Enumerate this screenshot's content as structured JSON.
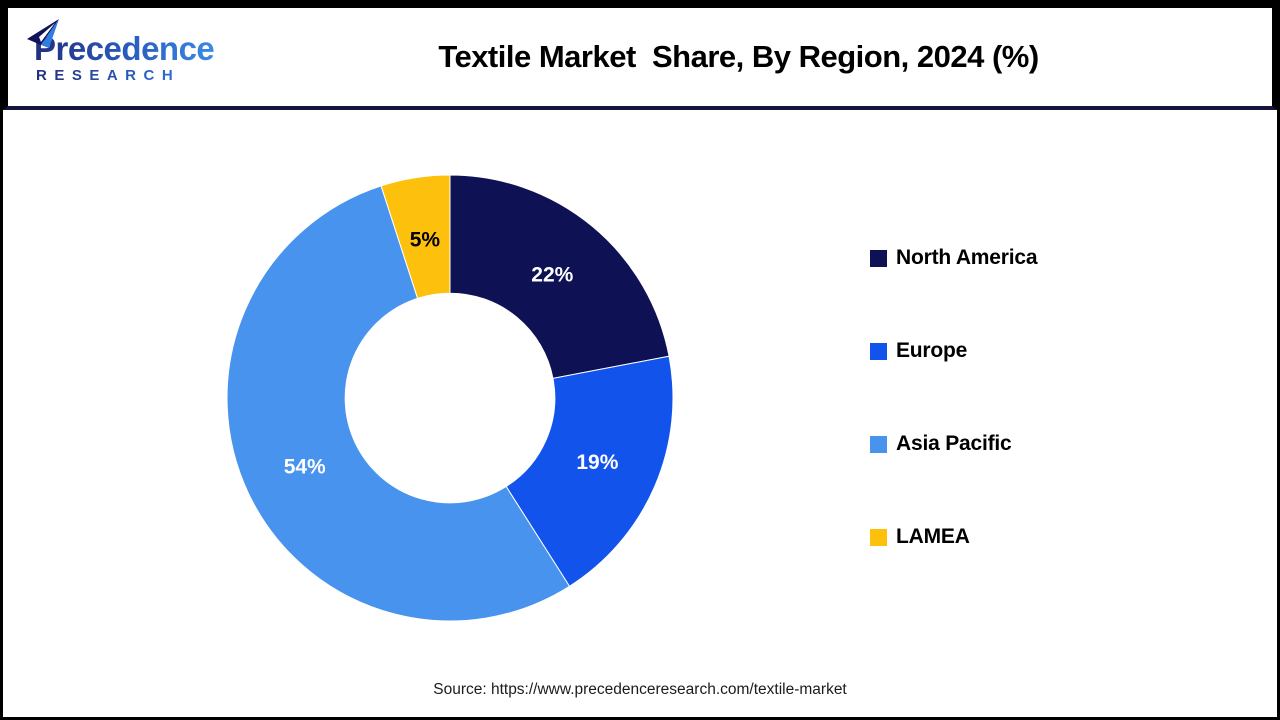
{
  "header": {
    "logo": {
      "name": "Precedence",
      "subtitle": "RESEARCH",
      "colors": {
        "navy": "#232E7D",
        "blue": "#3A8AE4"
      }
    },
    "title": "Textile Market  Share, By Region, 2024 (%)"
  },
  "chart_data": {
    "type": "pie",
    "subtype": "donut",
    "title": "Textile Market Share, By Region, 2024 (%)",
    "units": "%",
    "start_angle_deg": 0,
    "direction": "clockwise",
    "inner_radius_ratio": 0.47,
    "outer_radius_px": 223,
    "legend_position": "right",
    "grid": false,
    "series": [
      {
        "label": "North America",
        "value": 22,
        "data_label": "22%",
        "color": "#0E1254",
        "label_color": "#FFFFFF"
      },
      {
        "label": "Europe",
        "value": 19,
        "data_label": "19%",
        "color": "#1253EC",
        "label_color": "#FFFFFF"
      },
      {
        "label": "Asia Pacific",
        "value": 54,
        "data_label": "54%",
        "color": "#4793EE",
        "label_color": "#FFFFFF"
      },
      {
        "label": "LAMEA",
        "value": 5,
        "data_label": "5%",
        "color": "#FCC00D",
        "label_color": "#000000"
      }
    ]
  },
  "footer": {
    "source": "Source: https://www.precedenceresearch.com/textile-market"
  }
}
